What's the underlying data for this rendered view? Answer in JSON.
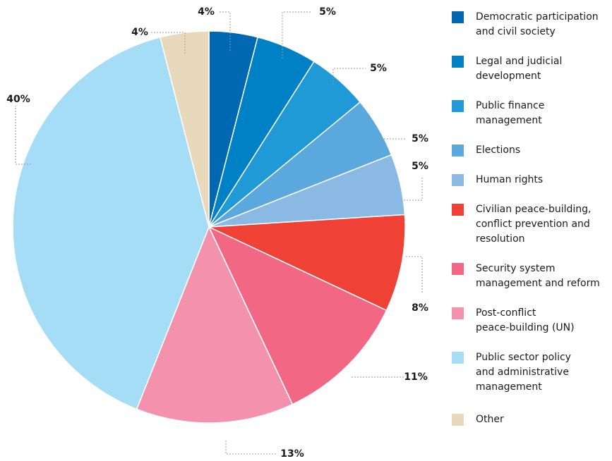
{
  "chart_data": {
    "type": "pie",
    "categories": [
      "Democratic participation\nand civil society",
      "Legal and judicial\ndevelopment",
      "Public finance\nmanagement",
      "Elections",
      "Human rights",
      "Civilian peace-building,\nconflict prevention and\nresolution",
      "Security system\nmanagement and reform",
      "Post-conflict\npeace-building (UN)",
      "Public sector policy\nand administrative\nmanagement",
      "Other"
    ],
    "values": [
      4,
      5,
      5,
      5,
      5,
      8,
      11,
      13,
      40,
      4
    ],
    "labels": [
      "4%",
      "5%",
      "5%",
      "5%",
      "5%",
      "8%",
      "11%",
      "13%",
      "40%",
      "4%"
    ],
    "colors": [
      "#0068B1",
      "#0081C6",
      "#1F9AD6",
      "#5BA8DE",
      "#8AB9E3",
      "#EF4136",
      "#F26884",
      "#F492AE",
      "#A5DCF6",
      "#E8D9BC"
    ],
    "legend_position": "right"
  }
}
